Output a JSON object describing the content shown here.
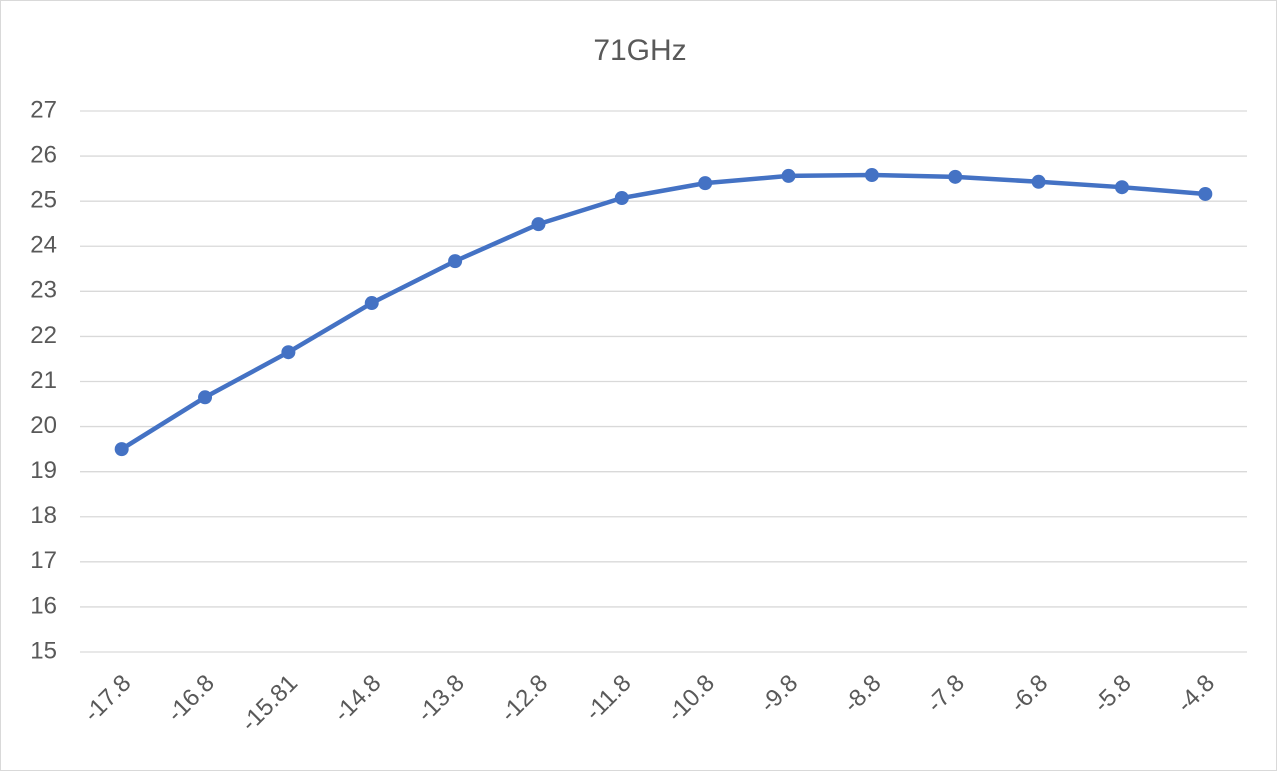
{
  "chart_data": {
    "type": "line",
    "title": "71GHz",
    "categories": [
      "-17.8",
      "-16.8",
      "-15.81",
      "-14.8",
      "-13.8",
      "-12.8",
      "-11.8",
      "-10.8",
      "-9.8",
      "-8.8",
      "-7.8",
      "-6.8",
      "-5.8",
      "-4.8"
    ],
    "series": [
      {
        "name": "71GHz",
        "color": "#4472c4",
        "values": [
          19.5,
          20.65,
          21.65,
          22.74,
          23.67,
          24.49,
          25.07,
          25.4,
          25.56,
          25.58,
          25.54,
          25.43,
          25.31,
          25.16
        ]
      }
    ],
    "ylim": [
      15,
      27
    ],
    "yticks": [
      15,
      16,
      17,
      18,
      19,
      20,
      21,
      22,
      23,
      24,
      25,
      26,
      27
    ],
    "grid": true
  }
}
